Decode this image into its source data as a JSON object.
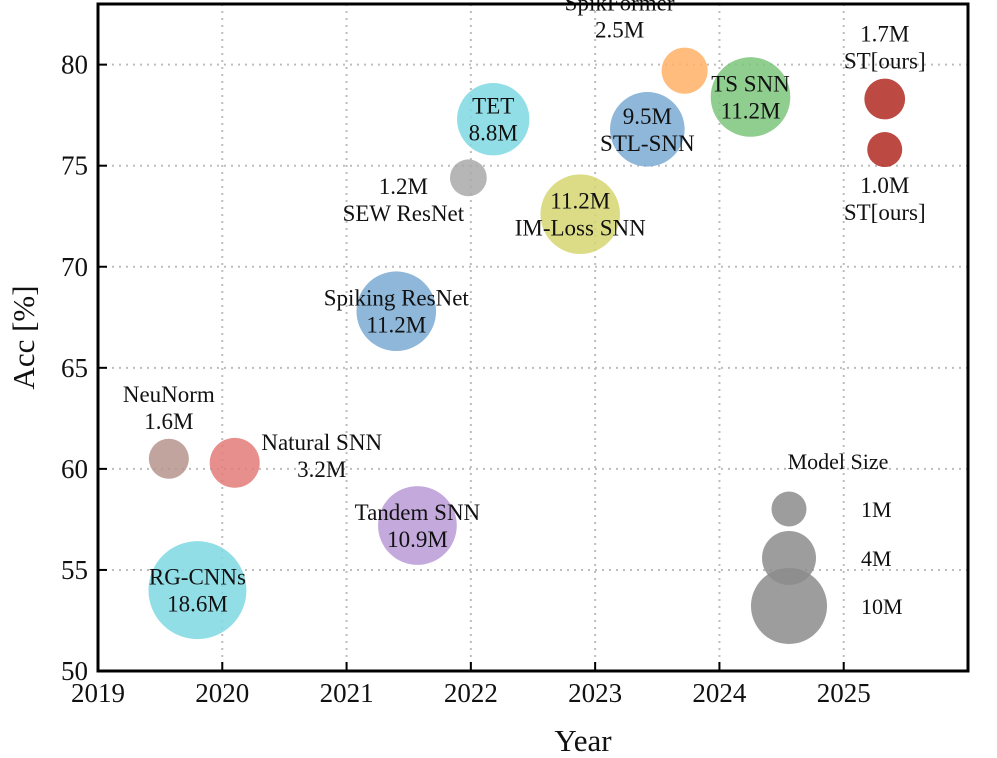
{
  "chart_data": {
    "type": "scatter",
    "subtype": "bubble",
    "xlabel": "Year",
    "ylabel": "Acc [%]",
    "xlim": [
      2019,
      2026
    ],
    "ylim": [
      50,
      83
    ],
    "xticks": [
      2019,
      2020,
      2021,
      2022,
      2023,
      2024,
      2025
    ],
    "yticks": [
      50,
      55,
      60,
      65,
      70,
      75,
      80
    ],
    "grid": true,
    "points": [
      {
        "id": "rg-cnns",
        "name": "RG-CNNs",
        "size_label": "18.6M",
        "size_m": 18.6,
        "x": 2019.8,
        "y": 54.0,
        "color": "#7fd8e3",
        "label_lines": [
          "RG-CNNs",
          "18.6M"
        ],
        "label_pos": "center"
      },
      {
        "id": "neunorm",
        "name": "NeuNorm",
        "size_label": "1.6M",
        "size_m": 1.6,
        "x": 2019.57,
        "y": 60.5,
        "color": "#b5948c",
        "label_lines": [
          "NeuNorm",
          "1.6M"
        ],
        "label_pos": "above"
      },
      {
        "id": "natural-snn",
        "name": "Natural SNN",
        "size_label": "3.2M",
        "size_m": 3.2,
        "x": 2020.1,
        "y": 60.3,
        "color": "#e27b78",
        "label_lines": [
          "Natural SNN",
          "3.2M"
        ],
        "label_pos": "right"
      },
      {
        "id": "spiking-resnet",
        "name": "Spiking ResNet",
        "size_label": "11.2M",
        "size_m": 11.2,
        "x": 2021.4,
        "y": 67.8,
        "color": "#7aaad3",
        "label_lines": [
          "Spiking ResNet",
          "11.2M"
        ],
        "label_pos": "center"
      },
      {
        "id": "tandem-snn",
        "name": "Tandem SNN",
        "size_label": "10.9M",
        "size_m": 10.9,
        "x": 2021.57,
        "y": 57.2,
        "color": "#b89ad6",
        "label_lines": [
          "Tandem SNN",
          "10.9M"
        ],
        "label_pos": "center"
      },
      {
        "id": "sew-resnet",
        "name": "SEW ResNet",
        "size_label": "1.2M",
        "size_m": 1.2,
        "x": 2021.98,
        "y": 74.4,
        "color": "#a9a9a9",
        "label_lines": [
          "1.2M",
          "SEW ResNet"
        ],
        "label_pos": "below-left"
      },
      {
        "id": "tet",
        "name": "TET",
        "size_label": "8.8M",
        "size_m": 8.8,
        "x": 2022.18,
        "y": 77.3,
        "color": "#7fd8e3",
        "label_lines": [
          "TET",
          "8.8M"
        ],
        "label_pos": "center"
      },
      {
        "id": "im-loss-snn",
        "name": "IM-Loss SNN",
        "size_label": "11.2M",
        "size_m": 11.2,
        "x": 2022.88,
        "y": 72.6,
        "color": "#d6d672",
        "label_lines": [
          "11.2M",
          "IM-Loss SNN"
        ],
        "label_pos": "center"
      },
      {
        "id": "spikformer",
        "name": "SpikFormer",
        "size_label": "2.5M",
        "size_m": 2.5,
        "x": 2023.72,
        "y": 79.7,
        "color": "#ffb066",
        "label_lines": [
          "SpikFormer",
          "2.5M"
        ],
        "label_pos": "left"
      },
      {
        "id": "stl-snn",
        "name": "STL-SNN",
        "size_label": "9.5M",
        "size_m": 9.5,
        "x": 2023.42,
        "y": 76.8,
        "color": "#7aaad3",
        "label_lines": [
          "9.5M",
          "STL-SNN"
        ],
        "label_pos": "center"
      },
      {
        "id": "ts-snn",
        "name": "TS SNN",
        "size_label": "11.2M",
        "size_m": 11.2,
        "x": 2024.25,
        "y": 78.4,
        "color": "#7cc67c",
        "label_lines": [
          "TS SNN",
          "11.2M"
        ],
        "label_pos": "center"
      },
      {
        "id": "st-ours-17",
        "name": "ST[ours]",
        "size_label": "1.7M",
        "size_m": 1.7,
        "x": 2025.33,
        "y": 78.3,
        "color": "#b02a22",
        "label_lines": [
          "1.7M",
          "ST[ours]"
        ],
        "label_pos": "above"
      },
      {
        "id": "st-ours-10",
        "name": "ST[ours]",
        "size_label": "1.0M",
        "size_m": 1.0,
        "x": 2025.33,
        "y": 75.8,
        "color": "#b02a22",
        "label_lines": [
          "1.0M",
          "ST[ours]"
        ],
        "label_pos": "below"
      }
    ],
    "legend": {
      "title": "Model Size",
      "position": "bottom-right",
      "color": "#8c8c8c",
      "entries": [
        {
          "label": "1M",
          "size_m": 1
        },
        {
          "label": "4M",
          "size_m": 4
        },
        {
          "label": "10M",
          "size_m": 10
        }
      ]
    }
  }
}
